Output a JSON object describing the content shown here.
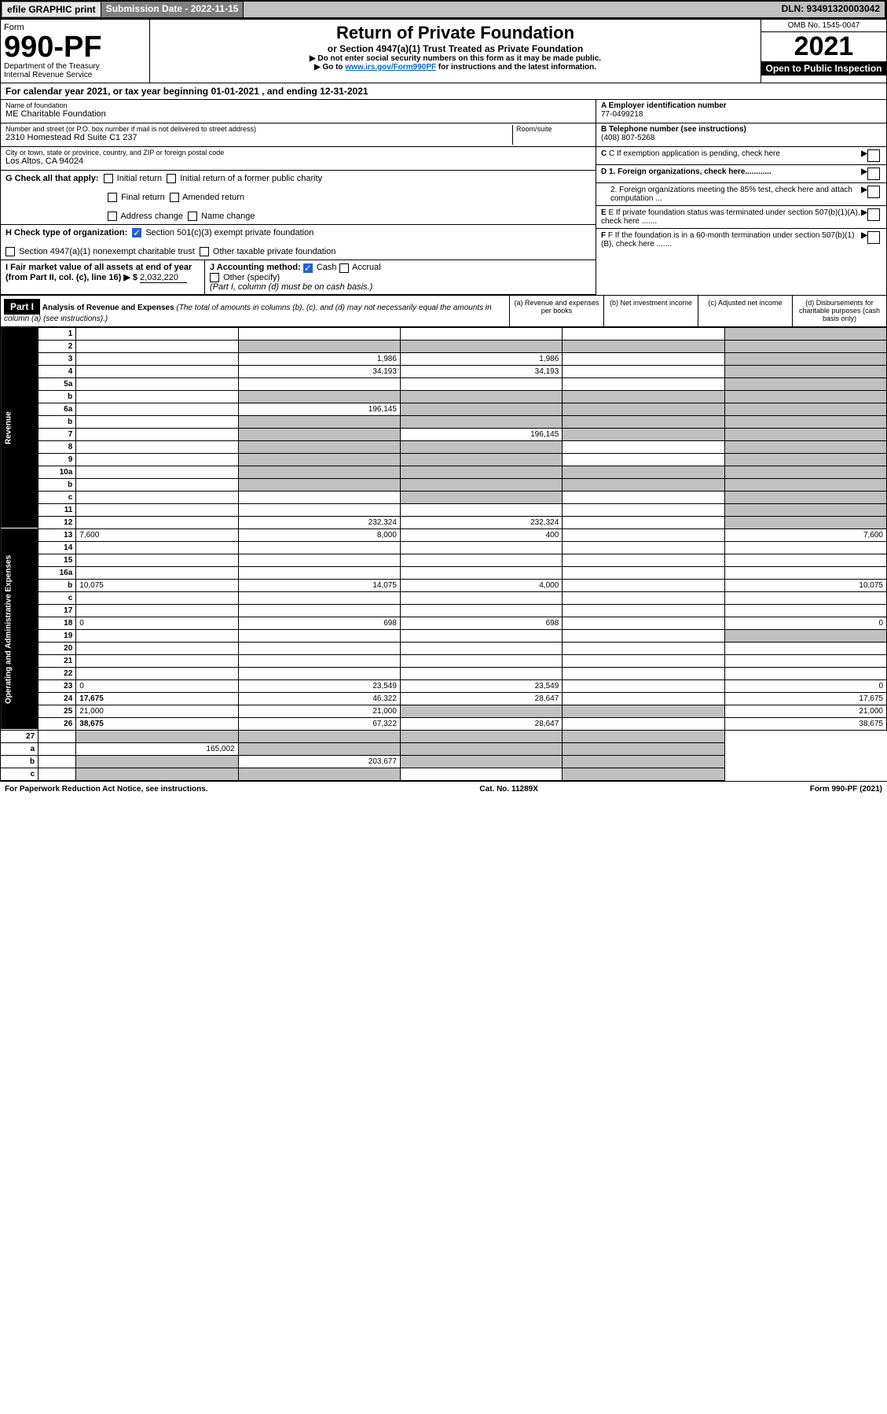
{
  "topbar": {
    "efile": "efile GRAPHIC print",
    "submission_label": "Submission Date - 2022-11-15",
    "dln": "DLN: 93491320003042"
  },
  "header": {
    "form": "Form",
    "form_num": "990-PF",
    "dept": "Department of the Treasury",
    "irs": "Internal Revenue Service",
    "title": "Return of Private Foundation",
    "subtitle": "or Section 4947(a)(1) Trust Treated as Private Foundation",
    "note1": "▶ Do not enter social security numbers on this form as it may be made public.",
    "note2_prefix": "▶ Go to ",
    "note2_link": "www.irs.gov/Form990PF",
    "note2_suffix": " for instructions and the latest information.",
    "omb": "OMB No. 1545-0047",
    "year": "2021",
    "open": "Open to Public Inspection"
  },
  "cal_year": "For calendar year 2021, or tax year beginning 01-01-2021           , and ending 12-31-2021",
  "foundation": {
    "name_label": "Name of foundation",
    "name": "ME Charitable Foundation",
    "addr_label": "Number and street (or P.O. box number if mail is not delivered to street address)",
    "addr": "2310 Homestead Rd Suite C1 237",
    "room_label": "Room/suite",
    "city_label": "City or town, state or province, country, and ZIP or foreign postal code",
    "city": "Los Altos, CA  94024",
    "ein_label": "A Employer identification number",
    "ein": "77-0499218",
    "phone_label": "B Telephone number (see instructions)",
    "phone": "(408) 807-5268",
    "c_label": "C If exemption application is pending, check here",
    "d1": "D 1. Foreign organizations, check here............",
    "d2": "2. Foreign organizations meeting the 85% test, check here and attach computation ...",
    "e": "E If private foundation status was terminated under section 507(b)(1)(A), check here .......",
    "f": "F If the foundation is in a 60-month termination under section 507(b)(1)(B), check here ......."
  },
  "g": {
    "label": "G Check all that apply:",
    "initial": "Initial return",
    "initial_former": "Initial return of a former public charity",
    "final": "Final return",
    "amended": "Amended return",
    "address": "Address change",
    "name_change": "Name change"
  },
  "h": {
    "label": "H Check type of organization:",
    "sec501": "Section 501(c)(3) exempt private foundation",
    "sec4947": "Section 4947(a)(1) nonexempt charitable trust",
    "other_taxable": "Other taxable private foundation"
  },
  "i": {
    "label": "I Fair market value of all assets at end of year (from Part II, col. (c), line 16) ▶ $",
    "value": "2,032,220"
  },
  "j": {
    "label": "J Accounting method:",
    "cash": "Cash",
    "accrual": "Accrual",
    "other": "Other (specify)",
    "note": "(Part I, column (d) must be on cash basis.)"
  },
  "part1": {
    "hdr": "Part I",
    "title": "Analysis of Revenue and Expenses",
    "sub": "(The total of amounts in columns (b), (c), and (d) may not necessarily equal the amounts in column (a) (see instructions).)",
    "col_a": "(a)  Revenue and expenses per books",
    "col_b": "(b)  Net investment income",
    "col_c": "(c)  Adjusted net income",
    "col_d": "(d)  Disbursements for charitable purposes (cash basis only)"
  },
  "sections": {
    "revenue": "Revenue",
    "opex": "Operating and Administrative Expenses"
  },
  "lines": [
    {
      "n": "1",
      "d": "",
      "a": "",
      "b": "",
      "c": "",
      "grey_d": true
    },
    {
      "n": "2",
      "d": "",
      "a": "",
      "b": "",
      "c": "",
      "grey_abc": true,
      "grey_d": true
    },
    {
      "n": "3",
      "d": "",
      "a": "1,986",
      "b": "1,986",
      "c": "",
      "grey_d": true
    },
    {
      "n": "4",
      "d": "",
      "a": "34,193",
      "b": "34,193",
      "c": "",
      "grey_d": true
    },
    {
      "n": "5a",
      "d": "",
      "a": "",
      "b": "",
      "c": "",
      "grey_d": true
    },
    {
      "n": "b",
      "d": "",
      "a": "",
      "b": "",
      "c": "",
      "grey_all": true
    },
    {
      "n": "6a",
      "d": "",
      "a": "196,145",
      "b": "",
      "c": "",
      "grey_bcd": true
    },
    {
      "n": "b",
      "d": "",
      "a": "",
      "b": "",
      "c": "",
      "grey_all": true
    },
    {
      "n": "7",
      "d": "",
      "a": "",
      "b": "196,145",
      "c": "",
      "grey_a": true,
      "grey_cd": true
    },
    {
      "n": "8",
      "d": "",
      "a": "",
      "b": "",
      "c": "",
      "grey_ab": true,
      "grey_d": true
    },
    {
      "n": "9",
      "d": "",
      "a": "",
      "b": "",
      "c": "",
      "grey_ab": true,
      "grey_d": true
    },
    {
      "n": "10a",
      "d": "",
      "a": "",
      "b": "",
      "c": "",
      "grey_all": true
    },
    {
      "n": "b",
      "d": "",
      "a": "",
      "b": "",
      "c": "",
      "grey_all": true
    },
    {
      "n": "c",
      "d": "",
      "a": "",
      "b": "",
      "c": "",
      "grey_b": true,
      "grey_d": true
    },
    {
      "n": "11",
      "d": "",
      "a": "",
      "b": "",
      "c": "",
      "grey_d": true
    },
    {
      "n": "12",
      "d": "",
      "a": "232,324",
      "b": "232,324",
      "c": "",
      "grey_d": true,
      "bold": true
    }
  ],
  "opex_lines": [
    {
      "n": "13",
      "d": "7,600",
      "a": "8,000",
      "b": "400",
      "c": ""
    },
    {
      "n": "14",
      "d": "",
      "a": "",
      "b": "",
      "c": ""
    },
    {
      "n": "15",
      "d": "",
      "a": "",
      "b": "",
      "c": ""
    },
    {
      "n": "16a",
      "d": "",
      "a": "",
      "b": "",
      "c": ""
    },
    {
      "n": "b",
      "d": "10,075",
      "a": "14,075",
      "b": "4,000",
      "c": ""
    },
    {
      "n": "c",
      "d": "",
      "a": "",
      "b": "",
      "c": ""
    },
    {
      "n": "17",
      "d": "",
      "a": "",
      "b": "",
      "c": ""
    },
    {
      "n": "18",
      "d": "0",
      "a": "698",
      "b": "698",
      "c": ""
    },
    {
      "n": "19",
      "d": "",
      "a": "",
      "b": "",
      "c": "",
      "grey_d": true
    },
    {
      "n": "20",
      "d": "",
      "a": "",
      "b": "",
      "c": ""
    },
    {
      "n": "21",
      "d": "",
      "a": "",
      "b": "",
      "c": ""
    },
    {
      "n": "22",
      "d": "",
      "a": "",
      "b": "",
      "c": ""
    },
    {
      "n": "23",
      "d": "0",
      "a": "23,549",
      "b": "23,549",
      "c": ""
    },
    {
      "n": "24",
      "d": "17,675",
      "a": "46,322",
      "b": "28,647",
      "c": "",
      "bold": true
    },
    {
      "n": "25",
      "d": "21,000",
      "a": "21,000",
      "b": "",
      "c": "",
      "grey_bc": true
    },
    {
      "n": "26",
      "d": "38,675",
      "a": "67,322",
      "b": "28,647",
      "c": "",
      "bold": true
    }
  ],
  "bottom_lines": [
    {
      "n": "27",
      "d": "",
      "a": "",
      "b": "",
      "c": "",
      "grey_all": true
    },
    {
      "n": "a",
      "d": "",
      "a": "165,002",
      "b": "",
      "c": "",
      "grey_bcd": true,
      "bold": true
    },
    {
      "n": "b",
      "d": "",
      "a": "",
      "b": "203,677",
      "c": "",
      "grey_a": true,
      "grey_cd": true,
      "bold": true
    },
    {
      "n": "c",
      "d": "",
      "a": "",
      "b": "",
      "c": "",
      "grey_ab": true,
      "grey_d": true,
      "bold": true
    }
  ],
  "footer": {
    "left": "For Paperwork Reduction Act Notice, see instructions.",
    "mid": "Cat. No. 11289X",
    "right": "Form 990-PF (2021)"
  }
}
